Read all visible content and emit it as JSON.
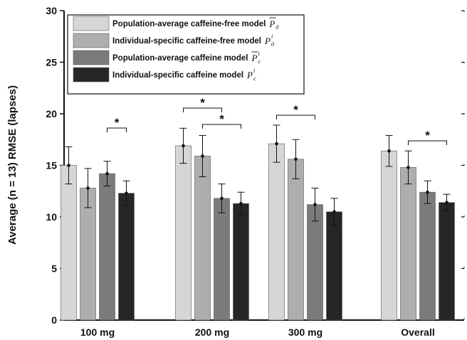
{
  "chart_data": {
    "type": "bar",
    "ylabel": "Average (n = 13) RMSE (lapses)",
    "ylim": [
      0,
      30
    ],
    "yticks": [
      "0",
      "5",
      "10",
      "15",
      "20",
      "25",
      "30"
    ],
    "categories": [
      "100 mg",
      "200 mg",
      "300 mg",
      "Overall"
    ],
    "series": [
      {
        "name": "Population-average caffeine-free model",
        "symbol": "P",
        "sub": "0",
        "sup": "",
        "overbar": true,
        "color": "#d6d6d6",
        "values": [
          15.0,
          16.9,
          17.1,
          16.4
        ],
        "err": [
          1.8,
          1.7,
          1.8,
          1.5
        ]
      },
      {
        "name": "Individual-specific caffeine-free model",
        "symbol": "P",
        "sub": "0",
        "sup": "i",
        "overbar": false,
        "color": "#aeaeae",
        "values": [
          12.8,
          15.9,
          15.6,
          14.8
        ],
        "err": [
          1.9,
          2.0,
          1.9,
          1.6
        ]
      },
      {
        "name": "Population-average caffeine model",
        "symbol": "P",
        "sub": "c",
        "sup": "i",
        "overbar": true,
        "color": "#7b7b7b",
        "values": [
          14.2,
          11.8,
          11.2,
          12.4
        ],
        "err": [
          1.2,
          1.4,
          1.6,
          1.1
        ]
      },
      {
        "name": "Individual-specific caffeine model",
        "symbol": "P",
        "sub": "c",
        "sup": "i",
        "overbar": false,
        "color": "#262626",
        "values": [
          12.3,
          11.3,
          10.5,
          11.4
        ],
        "err": [
          1.2,
          1.1,
          1.3,
          0.8
        ]
      }
    ],
    "significance": [
      {
        "category": 0,
        "from_series": 2,
        "to_series": 3,
        "label": "*"
      },
      {
        "category": 1,
        "from_series": 0,
        "to_series": 2,
        "label": "*"
      },
      {
        "category": 1,
        "from_series": 1,
        "to_series": 3,
        "label": "*"
      },
      {
        "category": 2,
        "from_series": 0,
        "to_series": 2,
        "label": "*"
      },
      {
        "category": 3,
        "from_series": 1,
        "to_series": 3,
        "label": "*"
      }
    ],
    "legend_position": "top-left",
    "grid": false
  }
}
